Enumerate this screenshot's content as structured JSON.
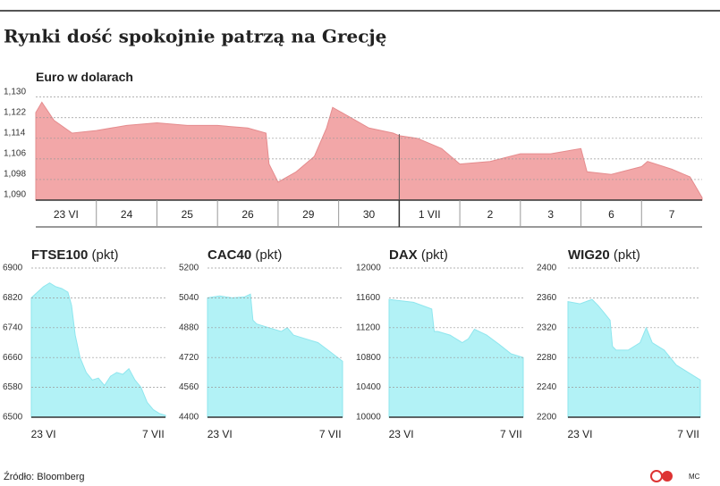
{
  "title": "Rynki dość spokojnie patrzą na Grecję",
  "source": "Źródło: Bloomberg",
  "credit": "MC",
  "chart_data": [
    {
      "type": "area",
      "title": "Euro w dolarach",
      "color": "#f2a7a8",
      "x": [
        0,
        0.1,
        0.3,
        0.6,
        1,
        1.5,
        2,
        2.5,
        3,
        3.5,
        3.8,
        3.85,
        4.0,
        4.3,
        4.6,
        4.8,
        4.9,
        5.2,
        5.5,
        5.9,
        6.0,
        6.3,
        6.7,
        7.0,
        7.5,
        8.0,
        8.5,
        9.0,
        9.1,
        9.5,
        10.0,
        10.1,
        10.5,
        10.8,
        11.0
      ],
      "values": [
        1.124,
        1.128,
        1.121,
        1.116,
        1.117,
        1.119,
        1.12,
        1.119,
        1.119,
        1.118,
        1.116,
        1.104,
        1.097,
        1.101,
        1.107,
        1.118,
        1.126,
        1.122,
        1.118,
        1.116,
        1.115,
        1.114,
        1.11,
        1.104,
        1.105,
        1.108,
        1.108,
        1.11,
        1.101,
        1.1,
        1.103,
        1.105,
        1.102,
        1.099,
        1.091
      ],
      "xlim": [
        0,
        11
      ],
      "ylim": [
        1.09,
        1.133
      ],
      "yticks": [
        {
          "value": 1.09,
          "label": "1,090"
        },
        {
          "value": 1.098,
          "label": "1,098"
        },
        {
          "value": 1.106,
          "label": "1,106"
        },
        {
          "value": 1.114,
          "label": "1,114"
        },
        {
          "value": 1.122,
          "label": "1,122"
        },
        {
          "value": 1.13,
          "label": "1,130"
        }
      ],
      "xticks": [
        {
          "value": 0.5,
          "label": "23 VI"
        },
        {
          "value": 1.5,
          "label": "24"
        },
        {
          "value": 2.5,
          "label": "25"
        },
        {
          "value": 3.5,
          "label": "26"
        },
        {
          "value": 4.5,
          "label": "29"
        },
        {
          "value": 5.5,
          "label": "30"
        },
        {
          "value": 6.5,
          "label": "1 VII"
        },
        {
          "value": 7.5,
          "label": "2"
        },
        {
          "value": 8.5,
          "label": "3"
        },
        {
          "value": 9.5,
          "label": "6"
        },
        {
          "value": 10.5,
          "label": "7"
        }
      ],
      "grid": true
    },
    {
      "type": "area",
      "title": "FTSE100",
      "unit": "(pkt)",
      "color": "#b2f2f6",
      "x": [
        0,
        0.5,
        1,
        1.5,
        2,
        2.5,
        3,
        3.3,
        3.6,
        4,
        4.5,
        5,
        5.5,
        6,
        6.5,
        7,
        7.5,
        8,
        8.5,
        9,
        9.5,
        10,
        10.5,
        11
      ],
      "values": [
        6820,
        6835,
        6850,
        6860,
        6850,
        6845,
        6835,
        6800,
        6720,
        6660,
        6620,
        6600,
        6605,
        6585,
        6610,
        6620,
        6615,
        6630,
        6600,
        6580,
        6540,
        6520,
        6510,
        6505
      ],
      "xlim": [
        0,
        11
      ],
      "ylim": [
        6500,
        6900
      ],
      "yticks": [
        6500,
        6580,
        6660,
        6740,
        6820,
        6900
      ],
      "xticks": [
        {
          "value": 1,
          "label": "23 VI"
        },
        {
          "value": 10,
          "label": "7 VII"
        }
      ],
      "grid": true
    },
    {
      "type": "area",
      "title": "CAC40",
      "unit": "(pkt)",
      "color": "#b2f2f6",
      "x": [
        0,
        1,
        2,
        3,
        3.5,
        3.7,
        4,
        5,
        6,
        6.5,
        7,
        8,
        9,
        10,
        11
      ],
      "values": [
        5040,
        5050,
        5040,
        5045,
        5060,
        4920,
        4900,
        4880,
        4860,
        4880,
        4840,
        4820,
        4800,
        4750,
        4700
      ],
      "xlim": [
        0,
        11
      ],
      "ylim": [
        4400,
        5200
      ],
      "yticks": [
        4400,
        4560,
        4720,
        4880,
        5040,
        5200
      ],
      "xticks": [
        {
          "value": 1,
          "label": "23 VI"
        },
        {
          "value": 10,
          "label": "7 VII"
        }
      ],
      "grid": true
    },
    {
      "type": "area",
      "title": "DAX",
      "unit": "(pkt)",
      "color": "#b2f2f6",
      "x": [
        0,
        1,
        2,
        3,
        3.5,
        3.7,
        4,
        5,
        6,
        6.5,
        7,
        8,
        9,
        10,
        11
      ],
      "values": [
        11580,
        11560,
        11540,
        11480,
        11450,
        11150,
        11150,
        11100,
        11000,
        11050,
        11180,
        11100,
        10980,
        10850,
        10800
      ],
      "xlim": [
        0,
        11
      ],
      "ylim": [
        10000,
        12000
      ],
      "yticks": [
        10000,
        10400,
        10800,
        11200,
        11600,
        12000
      ],
      "xticks": [
        {
          "value": 1,
          "label": "23 VI"
        },
        {
          "value": 10,
          "label": "7 VII"
        }
      ],
      "grid": true
    },
    {
      "type": "area",
      "title": "WIG20",
      "unit": "(pkt)",
      "color": "#b2f2f6",
      "x": [
        0,
        1,
        2,
        2.5,
        3,
        3.5,
        3.7,
        4,
        5,
        6,
        6.5,
        7,
        8,
        9,
        10,
        11
      ],
      "values": [
        2355,
        2352,
        2358,
        2350,
        2340,
        2330,
        2295,
        2290,
        2290,
        2300,
        2320,
        2300,
        2290,
        2270,
        2260,
        2250
      ],
      "xlim": [
        0,
        11
      ],
      "ylim": [
        2200,
        2400
      ],
      "yticks": [
        2200,
        2240,
        2280,
        2320,
        2360,
        2400
      ],
      "xticks": [
        {
          "value": 1,
          "label": "23 VI"
        },
        {
          "value": 10,
          "label": "7 VII"
        }
      ],
      "grid": true
    }
  ]
}
